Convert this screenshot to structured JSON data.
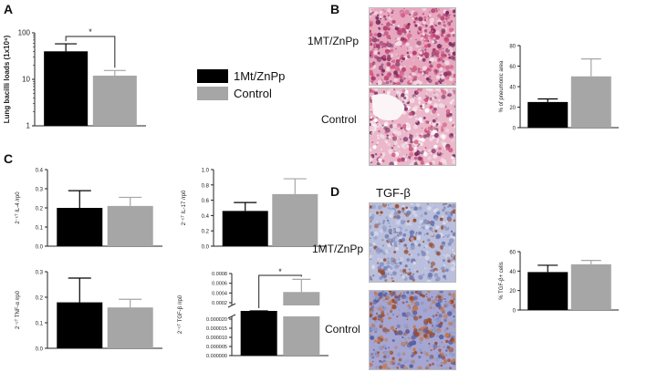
{
  "panels": {
    "a": "A",
    "b": "B",
    "c": "C",
    "d": "D"
  },
  "legend": {
    "items": [
      {
        "label": "1Mt/ZnPp",
        "color": "#000000"
      },
      {
        "label": "Control",
        "color": "#a6a6a6"
      }
    ]
  },
  "row_labels": {
    "b_top": "1MT/ZnPp",
    "b_bottom": "Control",
    "d_top": "1MT/ZnPp",
    "d_bottom": "Control",
    "d_title": "TGF-β"
  },
  "stain_colors": {
    "he_pink": "#d0577e",
    "he_light": "#f3dde6",
    "ihc_blue": "#8f9ac6",
    "ihc_brown": "#9a4a2c"
  },
  "chart_data": [
    {
      "id": "A",
      "type": "bar",
      "categories": [
        "1Mt/ZnPp",
        "Control"
      ],
      "values": [
        40,
        12
      ],
      "errors": [
        18,
        3.5
      ],
      "ylabel": "Lung bacilli loads (1x10⁶)",
      "yscale": "log",
      "ylim": [
        1,
        100
      ],
      "yticks": [
        "1",
        "10",
        "100"
      ],
      "significance": "*",
      "colors": [
        "#000000",
        "#a6a6a6"
      ]
    },
    {
      "id": "B",
      "type": "bar",
      "categories": [
        "1Mt/ZnPp",
        "Control"
      ],
      "values": [
        25,
        50
      ],
      "errors": [
        3,
        17
      ],
      "ylabel": "% of pneumonic area",
      "ylim": [
        0,
        80
      ],
      "yticks": [
        "0",
        "20",
        "40",
        "60",
        "80"
      ],
      "colors": [
        "#000000",
        "#a6a6a6"
      ]
    },
    {
      "id": "C1",
      "type": "bar",
      "categories": [
        "1Mt/ZnPp",
        "Control"
      ],
      "values": [
        0.2,
        0.21
      ],
      "errors": [
        0.09,
        0.045
      ],
      "ylabel": "2⁻ᶜᵀ IL-4 /rp0",
      "ylim": [
        0,
        0.4
      ],
      "yticks": [
        "0.0",
        "0.1",
        "0.2",
        "0.3",
        "0.4"
      ],
      "colors": [
        "#000000",
        "#a6a6a6"
      ]
    },
    {
      "id": "C2",
      "type": "bar",
      "categories": [
        "1Mt/ZnPp",
        "Control"
      ],
      "values": [
        0.46,
        0.68
      ],
      "errors": [
        0.11,
        0.2
      ],
      "ylabel": "2⁻ᶜᵀ IL-17 /rp0",
      "ylim": [
        0,
        1.0
      ],
      "yticks": [
        "0.0",
        "0.2",
        "0.4",
        "0.6",
        "0.8",
        "1.0"
      ],
      "colors": [
        "#000000",
        "#a6a6a6"
      ]
    },
    {
      "id": "C3",
      "type": "bar",
      "categories": [
        "1Mt/ZnPp",
        "Control"
      ],
      "values": [
        0.18,
        0.16
      ],
      "errors": [
        0.095,
        0.032
      ],
      "ylabel": "2⁻ᶜᵀ TNF-α /rp0",
      "ylim": [
        0,
        0.3
      ],
      "yticks": [
        "0.0",
        "0.1",
        "0.2",
        "0.3"
      ],
      "colors": [
        "#000000",
        "#a6a6a6"
      ]
    },
    {
      "id": "C4",
      "type": "bar",
      "categories": [
        "1Mt/ZnPp",
        "Control"
      ],
      "values": [
        5e-05,
        0.00042
      ],
      "errors": [
        5e-06,
        0.00026
      ],
      "ylabel": "2⁻ᶜᵀ TGF-β /rp0",
      "axis_break": true,
      "lower_ticks": [
        "0.000000",
        "0.000005",
        "0.000010",
        "0.000015",
        "0.000020"
      ],
      "upper_ticks": [
        "0.0002",
        "0.0004",
        "0.0006",
        "0.0008"
      ],
      "significance": "*",
      "colors": [
        "#000000",
        "#a6a6a6"
      ]
    },
    {
      "id": "D",
      "type": "bar",
      "categories": [
        "1Mt/ZnPp",
        "Control"
      ],
      "values": [
        39,
        47
      ],
      "errors": [
        7,
        4
      ],
      "ylabel": "% TGF-β+ cells",
      "ylim": [
        0,
        60
      ],
      "yticks": [
        "0",
        "20",
        "40",
        "60"
      ],
      "colors": [
        "#000000",
        "#a6a6a6"
      ]
    }
  ]
}
